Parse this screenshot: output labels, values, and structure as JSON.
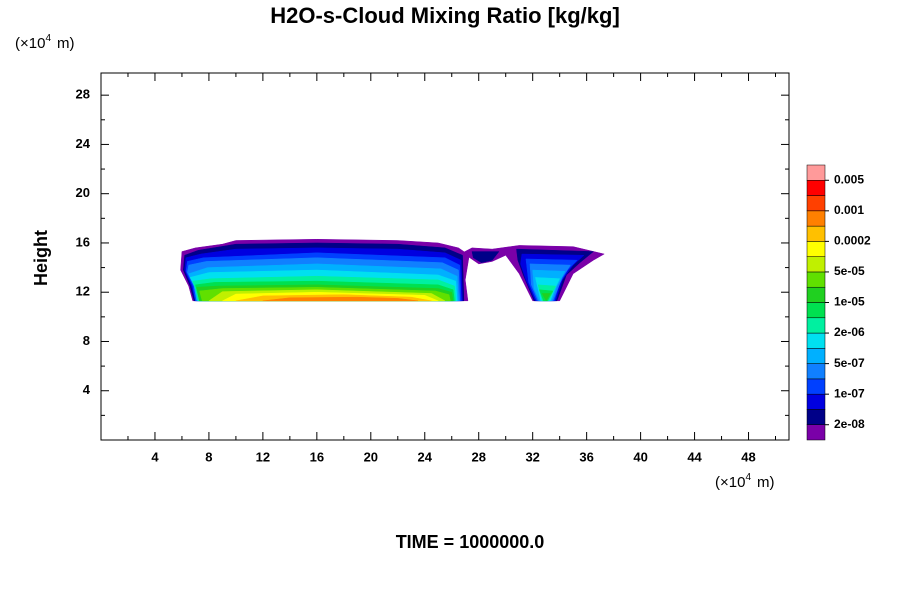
{
  "chart_data": {
    "type": "contour",
    "title": "H2O-s-Cloud Mixing Ratio [kg/kg]",
    "ylabel": "Height",
    "x_unit": [
      "(×10",
      "4",
      "m)"
    ],
    "y_unit": [
      "(×10",
      "4",
      "m)"
    ],
    "footer": "TIME = 1000000.0",
    "xlim": [
      0,
      51
    ],
    "ylim": [
      0,
      29.8
    ],
    "xticks": [
      4,
      8,
      12,
      16,
      20,
      24,
      28,
      32,
      36,
      40,
      44,
      48
    ],
    "yticks": [
      4,
      8,
      12,
      16,
      20,
      24,
      28
    ],
    "xticks_minor": [
      2,
      6,
      10,
      14,
      18,
      22,
      26,
      30,
      34,
      38,
      42,
      46,
      50
    ],
    "yticks_minor": [
      2,
      6,
      10,
      14,
      18,
      22,
      26
    ],
    "colorbar": {
      "levels": [
        1e-08,
        2e-08,
        5e-08,
        1e-07,
        2e-07,
        5e-07,
        1e-06,
        2e-06,
        5e-06,
        1e-05,
        2e-05,
        5e-05,
        0.0001,
        0.0002,
        0.0005,
        0.001,
        0.002,
        0.005,
        0.01
      ],
      "colors": [
        "#7a00a8",
        "#000088",
        "#0000e0",
        "#0040ff",
        "#1080ff",
        "#00b0ff",
        "#00e0f0",
        "#00f0a0",
        "#00e050",
        "#20d020",
        "#60e000",
        "#c0f000",
        "#ffff00",
        "#ffc000",
        "#ff8000",
        "#ff4000",
        "#ff0000",
        "#ff9a9a"
      ],
      "ticks": [
        {
          "value": 2e-08,
          "label": "2e-08"
        },
        {
          "value": 1e-07,
          "label": "1e-07"
        },
        {
          "value": 5e-07,
          "label": "5e-07"
        },
        {
          "value": 2e-06,
          "label": "2e-06"
        },
        {
          "value": 1e-05,
          "label": "1e-05"
        },
        {
          "value": 5e-05,
          "label": "5e-05"
        },
        0.0002,
        0.001,
        0.005
      ]
    },
    "contours": [
      {
        "level": 1e-08,
        "x": [
          26.8,
          27.5,
          29,
          31,
          35,
          37.3,
          36.5,
          35,
          34,
          32,
          31,
          30,
          29,
          28,
          27.2
        ],
        "y": [
          15.2,
          15.6,
          15.5,
          15.8,
          15.7,
          15.1,
          14.6,
          13.5,
          11.3,
          11.3,
          13.5,
          15,
          14.5,
          14.3,
          14.9
        ]
      },
      {
        "level": 2e-08,
        "x": [
          27.5,
          29.5,
          29,
          28.2,
          27.6
        ],
        "y": [
          15.3,
          15.3,
          14.6,
          14.4,
          14.8
        ]
      },
      {
        "level": 2e-08,
        "x": [
          30.8,
          36.5,
          35.5,
          34.5,
          33.8,
          32.1,
          31.3,
          30.9
        ],
        "y": [
          15.5,
          15.3,
          14.4,
          13.4,
          11.3,
          11.3,
          13.4,
          14.6
        ]
      },
      {
        "level": 5e-08,
        "x": [
          31.2,
          35.8,
          35,
          34.2,
          33.7,
          32.2,
          31.5,
          31.1
        ],
        "y": [
          15.1,
          15,
          14.2,
          13,
          11.3,
          11.3,
          13,
          14.3
        ]
      },
      {
        "level": 1e-07,
        "x": [
          31.5,
          35.3,
          34.6,
          34,
          33.6,
          32.3,
          31.7
        ],
        "y": [
          14.7,
          14.6,
          13.8,
          12.7,
          11.3,
          11.3,
          12.8
        ]
      },
      {
        "level": 2e-07,
        "x": [
          31.8,
          34.8,
          34.2,
          33.5,
          32.4,
          31.9
        ],
        "y": [
          14.3,
          14.2,
          13.2,
          11.3,
          11.3,
          12.6
        ]
      },
      {
        "level": 5e-07,
        "x": [
          32,
          34.4,
          33.8,
          33.4,
          32.5,
          32.1
        ],
        "y": [
          13.8,
          13.7,
          12.5,
          11.3,
          11.3,
          12.3
        ]
      },
      {
        "level": 1e-06,
        "x": [
          32.2,
          34,
          33.6,
          33.3,
          32.6
        ],
        "y": [
          13.2,
          13.1,
          12.2,
          11.3,
          11.3
        ]
      },
      {
        "level": 2e-06,
        "x": [
          32.4,
          33.7,
          33.2,
          32.7
        ],
        "y": [
          12.6,
          12.5,
          11.3,
          11.3
        ]
      },
      {
        "level": 5e-06,
        "x": [
          32.5,
          33.5,
          33.1,
          32.8
        ],
        "y": [
          12.2,
          12.1,
          11.3,
          11.3
        ]
      },
      {
        "level": 1e-05,
        "x": [
          32.7,
          33.3,
          33
        ],
        "y": [
          11.9,
          11.9,
          11.3
        ]
      },
      {
        "level": 1e-08,
        "x": [
          6.8,
          6.5,
          5.9,
          6,
          7,
          9,
          10,
          16,
          22,
          25,
          26.5,
          27.3,
          27,
          27.2
        ],
        "y": [
          11.3,
          12.5,
          13.8,
          15.3,
          15.6,
          15.9,
          16.2,
          16.3,
          16.2,
          16,
          15.6,
          15,
          13,
          11.3
        ]
      },
      {
        "level": 2e-08,
        "x": [
          6.9,
          6.6,
          6.1,
          6.2,
          7.2,
          10,
          16,
          22,
          25.5,
          26.8,
          26.9
        ],
        "y": [
          11.3,
          12.5,
          13.8,
          15,
          15.4,
          15.9,
          16,
          15.9,
          15.6,
          15,
          11.3
        ]
      },
      {
        "level": 5e-08,
        "x": [
          7,
          6.7,
          6.2,
          6.3,
          7.4,
          10,
          16,
          22,
          25.5,
          26.7,
          26.8
        ],
        "y": [
          11.3,
          12.5,
          13.8,
          14.8,
          15.1,
          15.5,
          15.6,
          15.5,
          15.2,
          14.6,
          11.3
        ]
      },
      {
        "level": 1e-07,
        "x": [
          7,
          6.8,
          6.3,
          6.4,
          7.6,
          16,
          25.5,
          26.6,
          26.7
        ],
        "y": [
          11.3,
          12.5,
          13.7,
          14.5,
          14.8,
          15.2,
          14.8,
          14.2,
          11.3
        ]
      },
      {
        "level": 2e-07,
        "x": [
          7.1,
          6.9,
          6.4,
          6.5,
          7.8,
          16,
          25.3,
          26.5,
          26.6
        ],
        "y": [
          11.3,
          12.5,
          13.6,
          14.2,
          14.5,
          14.8,
          14.4,
          13.8,
          11.3
        ]
      },
      {
        "level": 5e-07,
        "x": [
          7.1,
          6.9,
          6.5,
          7.9,
          16,
          25.2,
          26.4,
          26.5
        ],
        "y": [
          11.3,
          12.5,
          13.5,
          14,
          14.3,
          13.9,
          13.3,
          11.3
        ]
      },
      {
        "level": 1e-06,
        "x": [
          7.2,
          7,
          6.6,
          8,
          16,
          25,
          26.3,
          26.4
        ],
        "y": [
          11.3,
          12.4,
          13.2,
          13.6,
          13.8,
          13.4,
          12.9,
          11.3
        ]
      },
      {
        "level": 2e-06,
        "x": [
          7.2,
          7,
          6.8,
          8.2,
          16,
          25,
          26.2,
          26.3
        ],
        "y": [
          11.3,
          12.3,
          12.9,
          13.1,
          13.3,
          13,
          12.5,
          11.3
        ]
      },
      {
        "level": 5e-06,
        "x": [
          7.3,
          7,
          8.4,
          16,
          25,
          26.1,
          26.2
        ],
        "y": [
          11.3,
          12.6,
          12.8,
          12.9,
          12.6,
          12.2,
          11.3
        ]
      },
      {
        "level": 1e-05,
        "x": [
          7.3,
          7.1,
          8.6,
          16,
          25,
          26,
          26.1
        ],
        "y": [
          11.3,
          12.4,
          12.5,
          12.6,
          12.3,
          12,
          11.3
        ]
      },
      {
        "level": 2e-05,
        "x": [
          7.5,
          7.3,
          9,
          16,
          24.8,
          25.8,
          25.9
        ],
        "y": [
          11.3,
          12.1,
          12.3,
          12.4,
          12.1,
          11.8,
          11.3
        ]
      },
      {
        "level": 5e-05,
        "x": [
          8,
          9,
          16,
          24.5,
          25.5
        ],
        "y": [
          11.3,
          12.05,
          12.2,
          11.9,
          11.3
        ]
      },
      {
        "level": 0.0001,
        "x": [
          9,
          10,
          16,
          24,
          25
        ],
        "y": [
          11.3,
          11.85,
          12,
          11.75,
          11.3
        ]
      },
      {
        "level": 0.0002,
        "x": [
          10,
          12,
          18,
          23,
          24.5
        ],
        "y": [
          11.3,
          11.7,
          11.8,
          11.6,
          11.3
        ]
      },
      {
        "level": 0.0005,
        "x": [
          12,
          14,
          19,
          22,
          23.5
        ],
        "y": [
          11.3,
          11.55,
          11.6,
          11.5,
          11.3
        ]
      }
    ]
  }
}
